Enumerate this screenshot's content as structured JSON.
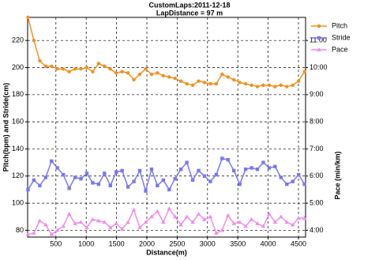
{
  "chart_data": {
    "type": "line",
    "title": "CustomLaps:2011-12-18",
    "subtitle": "LapDistance = 97 m",
    "x_label": "Distance(m)",
    "y_label": "Pitch(bpm) and Stride(cm)",
    "y2_label": "Pace (min/km)",
    "x": [
      40,
      137,
      234,
      331,
      428,
      525,
      622,
      719,
      816,
      913,
      1010,
      1107,
      1204,
      1301,
      1398,
      1495,
      1592,
      1689,
      1786,
      1883,
      1980,
      2077,
      2174,
      2271,
      2368,
      2465,
      2562,
      2659,
      2756,
      2853,
      2950,
      3047,
      3144,
      3241,
      3338,
      3435,
      3532,
      3629,
      3726,
      3823,
      3920,
      4017,
      4114,
      4211,
      4308,
      4405,
      4502,
      4599
    ],
    "series": [
      {
        "name": "Pitch",
        "color": "#f0901e",
        "marker": "circle",
        "values": [
          237,
          220,
          205,
          201,
          201,
          199,
          199,
          197,
          199,
          199,
          200,
          197,
          203,
          201,
          199,
          196,
          197,
          196,
          191,
          195,
          199,
          195,
          196,
          194,
          193,
          192,
          190,
          188,
          187,
          190,
          189,
          188,
          188,
          195,
          193,
          191,
          189,
          188,
          187,
          186,
          187,
          187,
          186,
          187,
          186,
          187,
          190,
          197
        ]
      },
      {
        "name": "Stride",
        "color": "#7878f0",
        "marker": "square",
        "values": [
          110,
          117,
          113,
          119,
          131,
          126,
          121,
          111,
          119,
          118,
          122,
          115,
          114,
          122,
          113,
          123,
          124,
          112,
          116,
          124,
          109,
          125,
          113,
          117,
          110,
          118,
          125,
          130,
          117,
          124,
          120,
          116,
          121,
          133,
          132,
          124,
          114,
          125,
          126,
          125,
          130,
          126,
          127,
          119,
          114,
          116,
          121,
          114
        ]
      },
      {
        "name": "Pace",
        "color": "#f08ce8",
        "marker": "triangle",
        "axis": "y2",
        "values": [
          3.85,
          3.9,
          4.35,
          4.2,
          3.85,
          4.0,
          4.15,
          4.6,
          4.25,
          4.3,
          4.1,
          4.4,
          4.35,
          4.3,
          4.1,
          4.25,
          4.05,
          4.3,
          4.75,
          4.1,
          4.3,
          4.5,
          4.7,
          4.3,
          4.8,
          4.5,
          4.2,
          4.5,
          4.3,
          4.6,
          4.4,
          4.5,
          3.9,
          4.0,
          4.55,
          4.25,
          4.3,
          4.15,
          4.4,
          4.25,
          4.15,
          4.6,
          4.3,
          4.5,
          4.3,
          4.2,
          4.45,
          4.45
        ]
      }
    ],
    "xlim": [
      34,
      4617
    ],
    "xticks": [
      500,
      1000,
      1500,
      2000,
      2500,
      3000,
      3500,
      4000,
      4500
    ],
    "ylim": [
      75,
      237
    ],
    "yticks": [
      80,
      100,
      120,
      140,
      160,
      180,
      200,
      220
    ],
    "y2lim": [
      3.75,
      11.85
    ],
    "y2ticks": [
      {
        "value": 4,
        "label": "4:00"
      },
      {
        "value": 5,
        "label": "5:00"
      },
      {
        "value": 6,
        "label": "6:00"
      },
      {
        "value": 7,
        "label": "7:00"
      },
      {
        "value": 8,
        "label": "8:00"
      },
      {
        "value": 9,
        "label": "9:00"
      },
      {
        "value": 10,
        "label": "10:00"
      },
      {
        "value": 11,
        "label": "11:00"
      }
    ],
    "grid": true,
    "legend": "upper-right-outside"
  }
}
